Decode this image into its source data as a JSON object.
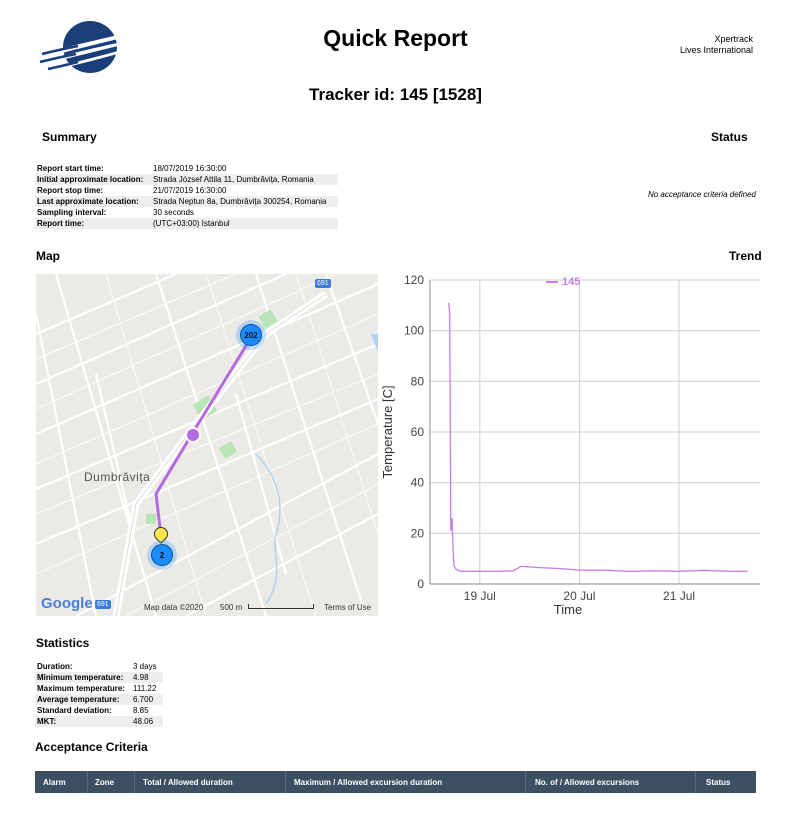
{
  "header": {
    "title": "Quick Report",
    "company_line1": "Xpertrack",
    "company_line2": "Lives International",
    "logo_color": "#1b3f7a"
  },
  "tracker_title": "Tracker id: 145 [1528]",
  "summary": {
    "heading": "Summary",
    "rows": [
      {
        "label": "Report start time:",
        "value": "18/07/2019 16:30:00"
      },
      {
        "label": "Initial approximate location:",
        "value": "Strada József Attila 11, Dumbrăvița, Romania"
      },
      {
        "label": "Report stop time:",
        "value": "21/07/2019 16:30:00"
      },
      {
        "label": "Last approximate location:",
        "value": "Strada Neptun 8a, Dumbrăvița 300254, Romania"
      },
      {
        "label": "Sampling interval:",
        "value": "30 seconds"
      },
      {
        "label": "Report time:",
        "value": "(UTC+03:00) Istanbul"
      }
    ]
  },
  "status": {
    "heading": "Status",
    "note": "No acceptance criteria defined"
  },
  "map": {
    "heading": "Map",
    "place_label": "Dumbrăvița",
    "road_badge": "691",
    "cluster_top": "202",
    "cluster_bottom": "2",
    "google_label": "Google",
    "attribution": "Map data ©2020",
    "scale_label": "500 m",
    "terms": "Terms of Use",
    "route_color": "#b36ae2",
    "cluster_color": "#1a8cff"
  },
  "trend": {
    "heading": "Trend"
  },
  "chart_data": {
    "type": "line",
    "xlabel": "Time",
    "ylabel": "Temperature [C]",
    "ylim": [
      0,
      120
    ],
    "y_ticks": [
      0,
      20,
      40,
      60,
      80,
      100,
      120
    ],
    "x_ticks": [
      "19 Jul",
      "20 Jul",
      "21 Jul"
    ],
    "xlim": [
      "2019-07-18T12:00",
      "2019-07-21T19:30"
    ],
    "legend_position": "top",
    "grid": true,
    "series": [
      {
        "name": "145",
        "color": "#c77fe6",
        "x": [
          "2019-07-18T16:30",
          "2019-07-18T16:45",
          "2019-07-18T17:00",
          "2019-07-18T17:20",
          "2019-07-18T17:35",
          "2019-07-18T17:50",
          "2019-07-18T18:10",
          "2019-07-18T18:40",
          "2019-07-18T19:30",
          "2019-07-18T21:00",
          "2019-07-19T00:00",
          "2019-07-19T04:00",
          "2019-07-19T08:00",
          "2019-07-19T10:00",
          "2019-07-19T14:00",
          "2019-07-19T20:00",
          "2019-07-20T00:00",
          "2019-07-20T06:00",
          "2019-07-20T12:00",
          "2019-07-20T18:00",
          "2019-07-21T00:00",
          "2019-07-21T06:00",
          "2019-07-21T12:00",
          "2019-07-21T16:30"
        ],
        "y": [
          111,
          107,
          21,
          26,
          12,
          7,
          6,
          5.5,
          5,
          5,
          5,
          5,
          5.2,
          7,
          6.5,
          6,
          5.5,
          5.5,
          5,
          5.2,
          5,
          5.4,
          5,
          5
        ]
      }
    ]
  },
  "statistics": {
    "heading": "Statistics",
    "rows": [
      {
        "label": "Duration:",
        "value": "3 days"
      },
      {
        "label": "Minimum temperature:",
        "value": "4.98"
      },
      {
        "label": "Maximum temperature:",
        "value": "111.22"
      },
      {
        "label": "Average temperature:",
        "value": "6.700"
      },
      {
        "label": "Standard deviation:",
        "value": "8.85"
      },
      {
        "label": "MKT:",
        "value": "48.06"
      }
    ]
  },
  "acceptance": {
    "heading": "Acceptance Criteria",
    "columns": [
      "Alarm",
      "Zone",
      "Total / Allowed duration",
      "Maximum / Allowed excursion duration",
      "No. of / Allowed excursions",
      "Status"
    ],
    "header_color": "#3d4f61"
  }
}
